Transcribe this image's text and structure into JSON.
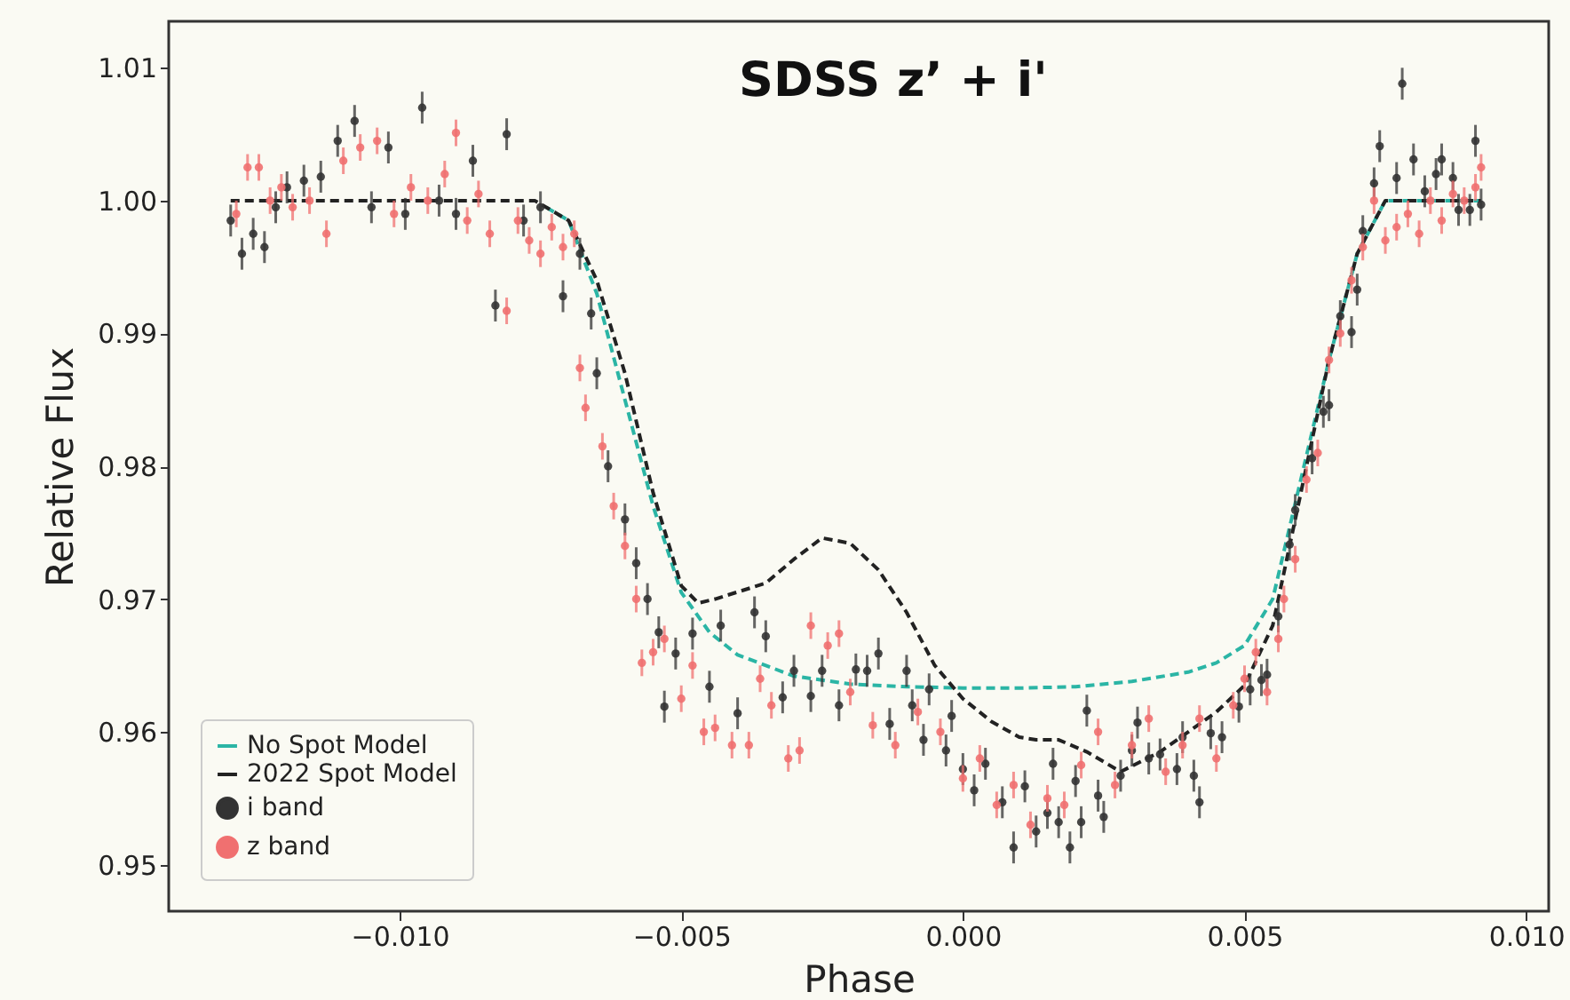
{
  "chart_data": {
    "type": "scatter",
    "title": "SDSS z’ + i'",
    "xlabel": "Phase",
    "ylabel": "Relative Flux",
    "xlim": [
      -0.0141,
      0.0104
    ],
    "ylim": [
      0.9465,
      1.0135
    ],
    "xticks": [
      {
        "value": -0.01,
        "label": "−0.010"
      },
      {
        "value": -0.005,
        "label": "−0.005"
      },
      {
        "value": 0,
        "label": "0.000"
      },
      {
        "value": 0.005,
        "label": "0.005"
      },
      {
        "value": 0.01,
        "label": "0.010"
      }
    ],
    "yticks": [
      {
        "value": 0.95,
        "label": "0.95"
      },
      {
        "value": 0.96,
        "label": "0.96"
      },
      {
        "value": 0.97,
        "label": "0.97"
      },
      {
        "value": 0.98,
        "label": "0.98"
      },
      {
        "value": 0.99,
        "label": "0.99"
      },
      {
        "value": 1.0,
        "label": "1.00"
      },
      {
        "value": 1.01,
        "label": "1.01"
      }
    ],
    "grid": false,
    "legend": "bottom left",
    "series": [
      {
        "name": "No Spot Model",
        "type": "line",
        "line_style": "dashed",
        "marker": "none",
        "color": "#2bb5a5",
        "x": [
          -0.0074,
          -0.007,
          -0.0065,
          -0.006,
          -0.0055,
          -0.005,
          -0.0045,
          -0.004,
          -0.003,
          -0.002,
          -0.001,
          0,
          0.001,
          0.002,
          0.003,
          0.004,
          0.0045,
          0.005,
          0.0055,
          0.006,
          0.0065,
          0.007,
          0.0075,
          0.0092
        ],
        "values": [
          0.9995,
          0.9985,
          0.993,
          0.985,
          0.977,
          0.9705,
          0.9675,
          0.9658,
          0.9642,
          0.9636,
          0.9634,
          0.9633,
          0.9633,
          0.9634,
          0.9638,
          0.9645,
          0.9652,
          0.9665,
          0.97,
          0.979,
          0.988,
          0.996,
          1.0,
          1.0
        ]
      },
      {
        "name": "2022 Spot Model",
        "type": "line",
        "line_style": "dashed",
        "marker": "none",
        "color": "#222222",
        "x": [
          -0.013,
          -0.0076,
          -0.007,
          -0.0065,
          -0.006,
          -0.0055,
          -0.005,
          -0.0047,
          -0.0044,
          -0.0035,
          -0.003,
          -0.0025,
          -0.002,
          -0.0015,
          -0.001,
          -0.0005,
          0,
          0.0005,
          0.001,
          0.0013,
          0.0017,
          0.0022,
          0.0028,
          0.0035,
          0.0045,
          0.005,
          0.0055,
          0.006,
          0.0065,
          0.007,
          0.0075,
          0.0092
        ],
        "values": [
          1.0,
          1.0,
          0.9985,
          0.994,
          0.987,
          0.978,
          0.971,
          0.9697,
          0.97,
          0.9712,
          0.973,
          0.9746,
          0.9742,
          0.9722,
          0.969,
          0.965,
          0.9625,
          0.9608,
          0.9596,
          0.9594,
          0.9594,
          0.9585,
          0.957,
          0.9585,
          0.9615,
          0.9635,
          0.968,
          0.978,
          0.988,
          0.996,
          1.0,
          1.0
        ]
      },
      {
        "name": "i band",
        "marker": "circle",
        "color": "#333333",
        "errors": [
          0.0012,
          0.0012,
          0.0012,
          0.0012,
          0.0012,
          0.0012,
          0.0012,
          0.0012,
          0.0012,
          0.0012,
          0.0012,
          0.0012,
          0.0012,
          0.0012,
          0.0012,
          0.0012,
          0.0012,
          0.0012,
          0.0012,
          0.0012,
          0.0012,
          0.0012,
          0.0012,
          0.0012,
          0.0012,
          0.0012,
          0.0012,
          0.0012,
          0.0012,
          0.0012,
          0.0012,
          0.0012,
          0.0012,
          0.0012,
          0.0012,
          0.0012,
          0.0012,
          0.0012,
          0.0012,
          0.0012,
          0.0012,
          0.0012,
          0.0012,
          0.0012,
          0.0012,
          0.0012,
          0.0012,
          0.0012,
          0.0012,
          0.0012,
          0.0012,
          0.0012,
          0.0012,
          0.0012,
          0.0012,
          0.0012,
          0.0012,
          0.0012,
          0.0012,
          0.0012,
          0.0012,
          0.0012,
          0.0012,
          0.0012,
          0.0012,
          0.0012,
          0.0012,
          0.0012,
          0.0012,
          0.0012,
          0.0012,
          0.0012,
          0.0012,
          0.0012,
          0.0012,
          0.0012,
          0.0012,
          0.0012,
          0.0012,
          0.0012,
          0.0012,
          0.0012,
          0.0012,
          0.0012,
          0.0012,
          0.0012,
          0.0012,
          0.0012,
          0.0012,
          0.0012,
          0.0012,
          0.0012,
          0.0012,
          0.0012,
          0.0012,
          0.0012,
          0.0012,
          0.0012,
          0.0012,
          0.0012,
          0.0012,
          0.0012,
          0.0012,
          0.0012,
          0.0012,
          0.0012,
          0.0012
        ],
        "x": [
          -0.013,
          -0.0128,
          -0.0126,
          -0.0124,
          -0.0122,
          -0.012,
          -0.0117,
          -0.0114,
          -0.0111,
          -0.0108,
          -0.0105,
          -0.0102,
          -0.0099,
          -0.0096,
          -0.0093,
          -0.009,
          -0.0087,
          -0.0083,
          -0.0081,
          -0.0078,
          -0.0075,
          -0.0071,
          -0.0068,
          -0.0066,
          -0.0065,
          -0.0063,
          -0.006,
          -0.0058,
          -0.0056,
          -0.0054,
          -0.0053,
          -0.0051,
          -0.0048,
          -0.0045,
          -0.0043,
          -0.004,
          -0.0037,
          -0.0035,
          -0.0032,
          -0.003,
          -0.0027,
          -0.0025,
          -0.0022,
          -0.0019,
          -0.0017,
          -0.0015,
          -0.0013,
          -0.001,
          -0.0009,
          -0.0007,
          -0.0006,
          -0.0003,
          -0.0002,
          0.0,
          0.0002,
          0.0004,
          0.0007,
          0.0009,
          0.0011,
          0.0013,
          0.0015,
          0.0016,
          0.0017,
          0.0019,
          0.002,
          0.0021,
          0.0022,
          0.0024,
          0.0025,
          0.0028,
          0.003,
          0.0031,
          0.0033,
          0.0035,
          0.0038,
          0.0039,
          0.0041,
          0.0042,
          0.0044,
          0.0046,
          0.0049,
          0.0051,
          0.0053,
          0.0054,
          0.0056,
          0.0058,
          0.0059,
          0.0062,
          0.0064,
          0.0065,
          0.0067,
          0.0069,
          0.007,
          0.0071,
          0.0073,
          0.0074,
          0.0077,
          0.0078,
          0.008,
          0.0082,
          0.0084,
          0.0085,
          0.0087,
          0.0088,
          0.009,
          0.0091,
          0.0092
        ],
        "values": [
          0.9985,
          0.996,
          0.9975,
          0.9965,
          0.9995,
          1.001,
          1.0015,
          1.0018,
          1.0045,
          1.006,
          0.9995,
          1.004,
          0.999,
          1.007,
          1.0,
          0.999,
          1.003,
          0.9921,
          1.005,
          0.9985,
          0.9995,
          0.9928,
          0.996,
          0.9915,
          0.987,
          0.98,
          0.976,
          0.9727,
          0.97,
          0.9675,
          0.9619,
          0.9659,
          0.9674,
          0.9634,
          0.968,
          0.9614,
          0.969,
          0.9672,
          0.9626,
          0.9646,
          0.9627,
          0.9646,
          0.962,
          0.9647,
          0.9646,
          0.9659,
          0.9606,
          0.9646,
          0.962,
          0.9594,
          0.9632,
          0.9586,
          0.9612,
          0.9572,
          0.9556,
          0.9576,
          0.9547,
          0.9513,
          0.9559,
          0.9525,
          0.9539,
          0.9576,
          0.9532,
          0.9513,
          0.9563,
          0.9532,
          0.9616,
          0.9552,
          0.9536,
          0.9567,
          0.9586,
          0.9607,
          0.958,
          0.9583,
          0.9572,
          0.9596,
          0.9567,
          0.9547,
          0.9599,
          0.9596,
          0.9619,
          0.9632,
          0.9639,
          0.9643,
          0.9687,
          0.9741,
          0.9767,
          0.9806,
          0.9841,
          0.9846,
          0.9913,
          0.9901,
          0.9933,
          0.9977,
          1.0013,
          1.0041,
          1.0017,
          1.0088,
          1.0031,
          1.0007,
          1.002,
          1.0031,
          1.0017,
          0.9993,
          0.9993,
          1.0045,
          0.9997
        ]
      },
      {
        "name": "z band",
        "marker": "circle",
        "color": "#f07070",
        "errors": [
          0.001,
          0.001,
          0.001,
          0.001,
          0.001,
          0.001,
          0.001,
          0.001,
          0.001,
          0.001,
          0.001,
          0.001,
          0.001,
          0.001,
          0.001,
          0.001,
          0.001,
          0.001,
          0.001,
          0.001,
          0.001,
          0.001,
          0.001,
          0.001,
          0.001,
          0.001,
          0.001,
          0.001,
          0.001,
          0.001,
          0.001,
          0.001,
          0.001,
          0.001,
          0.001,
          0.001,
          0.001,
          0.001,
          0.001,
          0.001,
          0.001,
          0.001,
          0.001,
          0.001,
          0.001,
          0.001,
          0.001,
          0.001,
          0.001,
          0.001,
          0.001,
          0.001,
          0.001,
          0.001,
          0.001,
          0.001,
          0.001,
          0.001,
          0.001,
          0.001,
          0.001,
          0.001,
          0.001,
          0.001,
          0.001,
          0.001,
          0.001,
          0.001,
          0.001,
          0.001,
          0.001,
          0.001,
          0.001,
          0.001,
          0.001,
          0.001,
          0.001,
          0.001,
          0.001,
          0.001,
          0.001,
          0.001,
          0.001,
          0.001,
          0.001,
          0.001,
          0.001,
          0.001,
          0.001,
          0.001,
          0.001,
          0.001,
          0.001
        ],
        "x": [
          -0.0129,
          -0.0127,
          -0.0125,
          -0.0123,
          -0.0121,
          -0.0119,
          -0.0116,
          -0.0113,
          -0.011,
          -0.0107,
          -0.0104,
          -0.0101,
          -0.0098,
          -0.0095,
          -0.0092,
          -0.009,
          -0.0088,
          -0.0086,
          -0.0084,
          -0.0081,
          -0.0079,
          -0.0077,
          -0.0075,
          -0.0073,
          -0.0071,
          -0.0069,
          -0.0068,
          -0.0067,
          -0.0064,
          -0.0062,
          -0.006,
          -0.0058,
          -0.0057,
          -0.0055,
          -0.0053,
          -0.005,
          -0.0048,
          -0.0046,
          -0.0044,
          -0.0041,
          -0.0038,
          -0.0036,
          -0.0034,
          -0.0031,
          -0.0029,
          -0.0027,
          -0.0024,
          -0.0022,
          -0.002,
          -0.0016,
          -0.0012,
          -0.0008,
          -0.0004,
          0.0,
          0.0003,
          0.0006,
          0.0009,
          0.0012,
          0.0015,
          0.0018,
          0.0021,
          0.0024,
          0.0027,
          0.003,
          0.0033,
          0.0036,
          0.0039,
          0.0042,
          0.0045,
          0.0048,
          0.005,
          0.0052,
          0.0054,
          0.0056,
          0.0057,
          0.0059,
          0.0061,
          0.0063,
          0.0065,
          0.0067,
          0.0069,
          0.0071,
          0.0073,
          0.0075,
          0.0077,
          0.0079,
          0.0081,
          0.0083,
          0.0085,
          0.0087,
          0.0089,
          0.0091,
          0.0092
        ],
        "values": [
          0.999,
          1.0025,
          1.0025,
          1.0,
          1.001,
          0.9995,
          1.0,
          0.9975,
          1.003,
          1.004,
          1.0045,
          0.999,
          1.001,
          1.0,
          1.002,
          1.0051,
          0.9985,
          1.0005,
          0.9975,
          0.9917,
          0.9985,
          0.997,
          0.996,
          0.998,
          0.9965,
          0.9975,
          0.9874,
          0.9844,
          0.9815,
          0.977,
          0.974,
          0.97,
          0.9652,
          0.966,
          0.967,
          0.9625,
          0.965,
          0.96,
          0.9603,
          0.959,
          0.959,
          0.964,
          0.962,
          0.958,
          0.9586,
          0.968,
          0.9665,
          0.9674,
          0.963,
          0.9605,
          0.959,
          0.9615,
          0.96,
          0.9565,
          0.958,
          0.9545,
          0.956,
          0.953,
          0.955,
          0.9545,
          0.9575,
          0.96,
          0.956,
          0.959,
          0.961,
          0.957,
          0.959,
          0.961,
          0.958,
          0.962,
          0.964,
          0.966,
          0.963,
          0.967,
          0.97,
          0.973,
          0.979,
          0.981,
          0.988,
          0.99,
          0.994,
          0.9965,
          1.0,
          0.997,
          0.998,
          0.999,
          0.9975,
          1.0,
          0.9985,
          1.0005,
          1.0,
          1.001,
          1.0025
        ]
      }
    ]
  }
}
